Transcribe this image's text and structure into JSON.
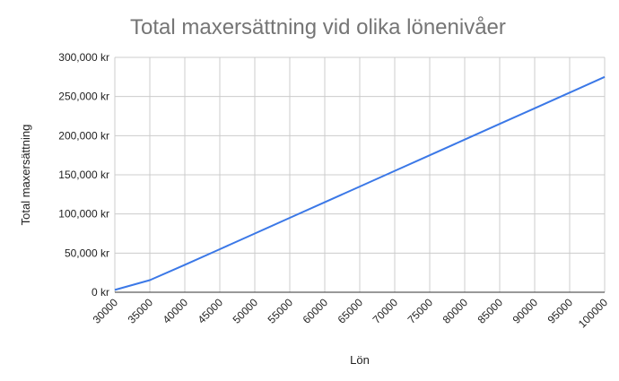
{
  "chart_data": {
    "type": "line",
    "title": "Total maxersättning vid olika lönenivåer",
    "xlabel": "Lön",
    "ylabel": "Total maxersättning",
    "x": [
      30000,
      35000,
      40000,
      45000,
      50000,
      55000,
      60000,
      65000,
      70000,
      75000,
      80000,
      85000,
      90000,
      95000,
      100000
    ],
    "x_tick_labels": [
      "30000",
      "35000",
      "40000",
      "45000",
      "50000",
      "55000",
      "60000",
      "65000",
      "70000",
      "75000",
      "80000",
      "85000",
      "90000",
      "95000",
      "100000"
    ],
    "series": [
      {
        "values": [
          3000,
          15500,
          35000,
          55000,
          75000,
          95000,
          115000,
          135000,
          155000,
          175000,
          195000,
          215000,
          235000,
          255000,
          275000
        ],
        "color": "#3b78e7"
      }
    ],
    "ylim": [
      0,
      300000
    ],
    "y_ticks": [
      0,
      50000,
      100000,
      150000,
      200000,
      250000,
      300000
    ],
    "y_tick_labels": [
      "0 kr",
      "50,000 kr",
      "100,000 kr",
      "150,000 kr",
      "200,000 kr",
      "250,000 kr",
      "300,000 kr"
    ],
    "grid": true,
    "legend": "none"
  }
}
